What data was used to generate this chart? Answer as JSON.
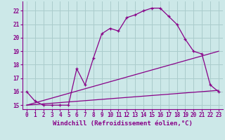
{
  "xlabel": "Windchill (Refroidissement éolien,°C)",
  "background_color": "#cce8e8",
  "grid_color": "#aacccc",
  "line_color": "#880088",
  "spine_color": "#880088",
  "xlim": [
    -0.5,
    23.5
  ],
  "ylim": [
    14.7,
    22.7
  ],
  "xticks": [
    0,
    1,
    2,
    3,
    4,
    5,
    6,
    7,
    8,
    9,
    10,
    11,
    12,
    13,
    14,
    15,
    16,
    17,
    18,
    19,
    20,
    21,
    22,
    23
  ],
  "yticks": [
    15,
    16,
    17,
    18,
    19,
    20,
    21,
    22
  ],
  "series1_x": [
    0,
    1,
    2,
    3,
    4,
    5,
    6,
    7,
    8,
    9,
    10,
    11,
    12,
    13,
    14,
    15,
    16,
    17,
    18,
    19,
    20,
    21,
    22,
    23
  ],
  "series1_y": [
    16.0,
    15.3,
    15.0,
    15.0,
    15.0,
    15.0,
    17.7,
    16.5,
    18.5,
    20.3,
    20.7,
    20.5,
    21.5,
    21.7,
    22.0,
    22.2,
    22.2,
    21.6,
    21.0,
    19.9,
    19.0,
    18.8,
    16.5,
    16.0
  ],
  "series2_x": [
    0,
    23
  ],
  "series2_y": [
    15.0,
    19.0
  ],
  "series3_x": [
    0,
    23
  ],
  "series3_y": [
    15.0,
    16.1
  ],
  "xlabel_fontsize": 6.5,
  "tick_fontsize": 5.5
}
